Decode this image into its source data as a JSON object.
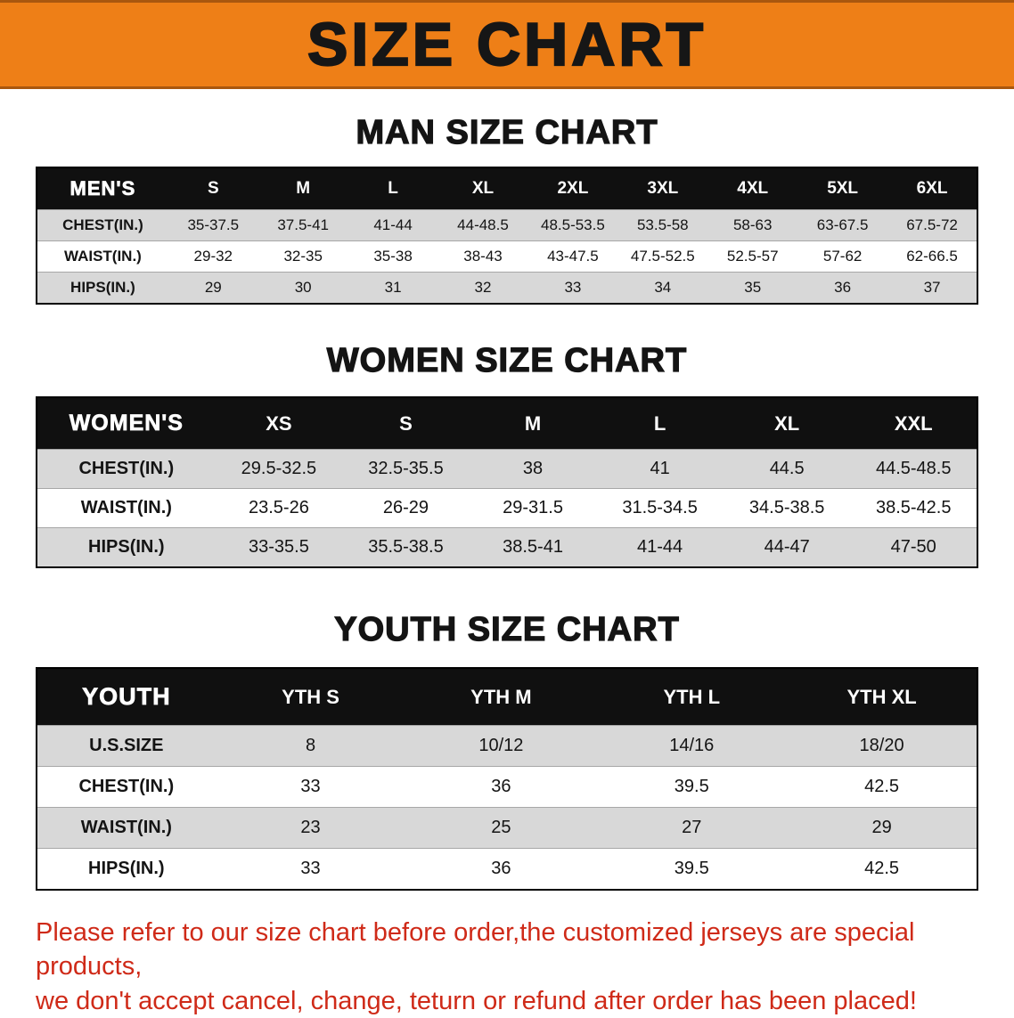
{
  "banner": {
    "title": "SIZE CHART"
  },
  "colors": {
    "banner_bg": "#ee7f17",
    "table_header_bg": "#101010",
    "row_gray": "#d8d8d8",
    "disclaimer_text": "#cf2a18"
  },
  "sections": [
    {
      "id": "men",
      "heading": "MAN SIZE CHART",
      "header": [
        "MEN'S",
        "S",
        "M",
        "L",
        "XL",
        "2XL",
        "3XL",
        "4XL",
        "5XL",
        "6XL"
      ],
      "rows": [
        [
          "CHEST(IN.)",
          "35-37.5",
          "37.5-41",
          "41-44",
          "44-48.5",
          "48.5-53.5",
          "53.5-58",
          "58-63",
          "63-67.5",
          "67.5-72"
        ],
        [
          "WAIST(IN.)",
          "29-32",
          "32-35",
          "35-38",
          "38-43",
          "43-47.5",
          "47.5-52.5",
          "52.5-57",
          "57-62",
          "62-66.5"
        ],
        [
          "HIPS(IN.)",
          "29",
          "30",
          "31",
          "32",
          "33",
          "34",
          "35",
          "36",
          "37"
        ]
      ]
    },
    {
      "id": "women",
      "heading": "WOMEN SIZE CHART",
      "header": [
        "WOMEN'S",
        "XS",
        "S",
        "M",
        "L",
        "XL",
        "XXL"
      ],
      "rows": [
        [
          "CHEST(IN.)",
          "29.5-32.5",
          "32.5-35.5",
          "38",
          "41",
          "44.5",
          "44.5-48.5"
        ],
        [
          "WAIST(IN.)",
          "23.5-26",
          "26-29",
          "29-31.5",
          "31.5-34.5",
          "34.5-38.5",
          "38.5-42.5"
        ],
        [
          "HIPS(IN.)",
          "33-35.5",
          "35.5-38.5",
          "38.5-41",
          "41-44",
          "44-47",
          "47-50"
        ]
      ]
    },
    {
      "id": "youth",
      "heading": "YOUTH SIZE CHART",
      "header": [
        "YOUTH",
        "YTH S",
        "YTH M",
        "YTH L",
        "YTH XL"
      ],
      "rows": [
        [
          "U.S.SIZE",
          "8",
          "10/12",
          "14/16",
          "18/20"
        ],
        [
          "CHEST(IN.)",
          "33",
          "36",
          "39.5",
          "42.5"
        ],
        [
          "WAIST(IN.)",
          "23",
          "25",
          "27",
          "29"
        ],
        [
          "HIPS(IN.)",
          "33",
          "36",
          "39.5",
          "42.5"
        ]
      ]
    }
  ],
  "disclaimer": {
    "line1": "Please refer to our size chart before order,the customized jerseys are special products,",
    "line2": "we don't accept cancel, change, teturn or refund after order has been placed!"
  }
}
